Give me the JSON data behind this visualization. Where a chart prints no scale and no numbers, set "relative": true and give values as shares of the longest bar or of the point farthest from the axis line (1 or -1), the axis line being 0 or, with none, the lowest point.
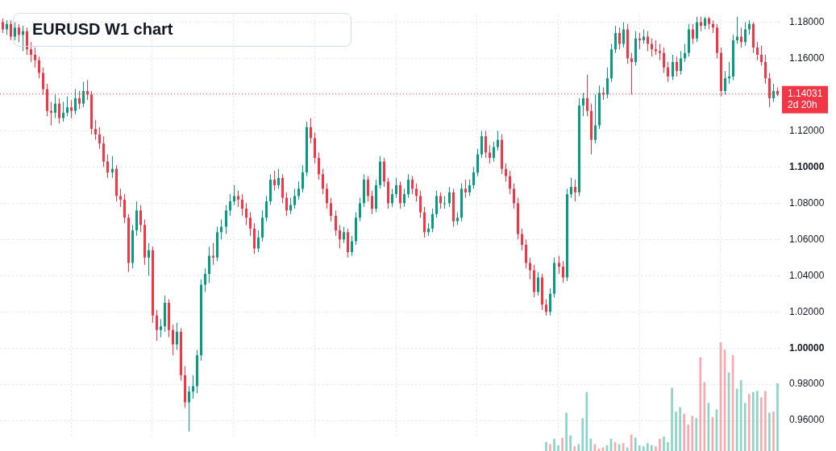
{
  "chart_data": [
    {
      "type": "candlestick",
      "title": "EURUSD W1 chart",
      "tick_labels": "y",
      "grid": true,
      "legend": false,
      "categories": [
        null,
        null,
        null,
        null,
        null,
        null,
        null,
        null,
        null,
        null,
        null,
        null,
        null,
        null,
        null,
        null,
        null,
        null,
        null,
        null,
        null,
        null,
        null,
        null,
        null,
        null,
        null,
        null,
        null,
        null,
        null,
        null,
        null,
        null,
        null,
        null,
        null,
        null,
        null,
        null,
        null,
        null,
        null,
        null,
        null,
        null,
        null,
        null,
        null,
        null,
        null,
        null,
        null,
        null,
        null,
        null,
        null,
        null,
        null,
        null,
        null,
        null,
        null,
        null,
        null,
        null,
        null,
        null,
        null,
        null,
        null,
        null,
        null,
        null,
        null,
        null,
        null,
        null,
        null,
        null,
        null,
        null,
        null,
        null,
        null,
        null,
        null,
        null,
        null,
        null,
        null,
        null,
        null,
        null,
        null,
        null,
        null,
        null,
        null,
        null,
        null,
        null,
        null,
        null,
        null,
        null,
        null,
        null,
        null,
        null,
        null,
        null,
        null,
        null,
        null,
        null,
        null,
        null,
        null,
        null,
        null,
        null,
        null,
        null,
        null,
        null,
        null,
        null,
        null,
        null,
        null,
        null,
        null,
        null,
        null,
        null,
        null,
        null,
        null,
        null,
        null,
        null,
        null,
        null,
        null,
        null,
        null,
        null,
        null,
        null,
        null,
        null,
        null,
        null,
        null,
        null,
        null,
        null,
        null,
        null,
        null,
        null,
        null,
        null,
        null,
        null,
        null,
        null,
        null,
        null,
        null,
        null,
        null,
        null,
        null,
        null,
        null,
        null,
        null,
        null,
        null,
        null,
        null,
        null,
        null,
        null,
        null,
        null,
        null,
        null,
        null,
        null
      ],
      "ylim": [
        0.9517,
        1.1837
      ],
      "yticks": [
        {
          "value": 0.96,
          "label": "0.96000"
        },
        {
          "value": 0.98,
          "label": "0.98000"
        },
        {
          "value": 1.0,
          "label": "1.00000"
        },
        {
          "value": 1.02,
          "label": "1.02000"
        },
        {
          "value": 1.04,
          "label": "1.04000"
        },
        {
          "value": 1.06,
          "label": "1.06000"
        },
        {
          "value": 1.08,
          "label": "1.08000"
        },
        {
          "value": 1.1,
          "label": "1.10000"
        },
        {
          "value": 1.12,
          "label": "1.12000"
        },
        {
          "value": 1.16,
          "label": "1.16000"
        },
        {
          "value": 1.18,
          "label": "1.18000"
        }
      ],
      "ref_lines": [
        {
          "axis": "y",
          "value": 1.14031,
          "label": "1.14031",
          "color": "#f23645",
          "line_style": "dotted"
        }
      ],
      "annotations": [
        "2d 20h"
      ],
      "ohlc": [
        [
          1.18,
          1.182,
          1.174,
          1.176
        ],
        [
          1.176,
          1.181,
          1.173,
          1.179
        ],
        [
          1.179,
          1.181,
          1.17,
          1.172
        ],
        [
          1.172,
          1.18,
          1.17,
          1.177
        ],
        [
          1.177,
          1.179,
          1.169,
          1.173
        ],
        [
          1.173,
          1.178,
          1.164,
          1.175
        ],
        [
          1.175,
          1.177,
          1.162,
          1.165
        ],
        [
          1.165,
          1.169,
          1.158,
          1.162
        ],
        [
          1.162,
          1.166,
          1.155,
          1.159
        ],
        [
          1.159,
          1.161,
          1.149,
          1.152
        ],
        [
          1.152,
          1.155,
          1.14,
          1.143
        ],
        [
          1.143,
          1.146,
          1.128,
          1.131
        ],
        [
          1.131,
          1.136,
          1.123,
          1.13
        ],
        [
          1.13,
          1.14,
          1.127,
          1.135
        ],
        [
          1.135,
          1.138,
          1.124,
          1.127
        ],
        [
          1.127,
          1.136,
          1.125,
          1.13
        ],
        [
          1.13,
          1.139,
          1.128,
          1.133
        ],
        [
          1.133,
          1.137,
          1.127,
          1.131
        ],
        [
          1.131,
          1.143,
          1.129,
          1.138
        ],
        [
          1.138,
          1.142,
          1.132,
          1.135
        ],
        [
          1.135,
          1.147,
          1.133,
          1.142
        ],
        [
          1.142,
          1.148,
          1.137,
          1.14
        ],
        [
          1.14,
          1.142,
          1.118,
          1.121
        ],
        [
          1.121,
          1.126,
          1.115,
          1.118
        ],
        [
          1.118,
          1.122,
          1.11,
          1.113
        ],
        [
          1.113,
          1.117,
          1.1,
          1.103
        ],
        [
          1.103,
          1.107,
          1.094,
          1.097
        ],
        [
          1.097,
          1.106,
          1.094,
          1.099
        ],
        [
          1.099,
          1.101,
          1.081,
          1.084
        ],
        [
          1.084,
          1.088,
          1.078,
          1.082
        ],
        [
          1.082,
          1.085,
          1.069,
          1.072
        ],
        [
          1.072,
          1.074,
          1.042,
          1.047
        ],
        [
          1.047,
          1.068,
          1.044,
          1.065
        ],
        [
          1.065,
          1.081,
          1.062,
          1.076
        ],
        [
          1.076,
          1.079,
          1.064,
          1.068
        ],
        [
          1.068,
          1.071,
          1.046,
          1.05
        ],
        [
          1.05,
          1.058,
          1.04,
          1.054
        ],
        [
          1.054,
          1.056,
          1.014,
          1.018
        ],
        [
          1.018,
          1.021,
          1.004,
          1.01
        ],
        [
          1.01,
          1.016,
          1.006,
          1.012
        ],
        [
          1.012,
          1.029,
          1.009,
          1.025
        ],
        [
          1.025,
          1.027,
          1.006,
          1.01
        ],
        [
          1.01,
          1.013,
          0.996,
          1.002
        ],
        [
          1.002,
          1.014,
          0.999,
          1.009
        ],
        [
          1.009,
          1.011,
          0.982,
          0.985
        ],
        [
          0.985,
          0.99,
          0.967,
          0.97
        ],
        [
          0.97,
          0.979,
          0.954,
          0.976
        ],
        [
          0.976,
          0.985,
          0.972,
          0.979
        ],
        [
          0.979,
          0.999,
          0.975,
          0.996
        ],
        [
          0.996,
          1.038,
          0.993,
          1.035
        ],
        [
          1.035,
          1.044,
          1.031,
          1.041
        ],
        [
          1.041,
          1.056,
          1.036,
          1.051
        ],
        [
          1.051,
          1.058,
          1.046,
          1.05
        ],
        [
          1.05,
          1.067,
          1.048,
          1.064
        ],
        [
          1.064,
          1.071,
          1.06,
          1.067
        ],
        [
          1.067,
          1.079,
          1.063,
          1.076
        ],
        [
          1.076,
          1.085,
          1.073,
          1.081
        ],
        [
          1.081,
          1.09,
          1.079,
          1.084
        ],
        [
          1.084,
          1.087,
          1.078,
          1.082
        ],
        [
          1.082,
          1.085,
          1.073,
          1.077
        ],
        [
          1.077,
          1.08,
          1.068,
          1.072
        ],
        [
          1.072,
          1.075,
          1.062,
          1.066
        ],
        [
          1.066,
          1.069,
          1.052,
          1.055
        ],
        [
          1.055,
          1.065,
          1.053,
          1.061
        ],
        [
          1.061,
          1.076,
          1.059,
          1.072
        ],
        [
          1.072,
          1.084,
          1.07,
          1.081
        ],
        [
          1.081,
          1.096,
          1.079,
          1.093
        ],
        [
          1.093,
          1.098,
          1.087,
          1.09
        ],
        [
          1.09,
          1.099,
          1.088,
          1.094
        ],
        [
          1.094,
          1.096,
          1.08,
          1.083
        ],
        [
          1.083,
          1.086,
          1.073,
          1.076
        ],
        [
          1.076,
          1.083,
          1.074,
          1.079
        ],
        [
          1.079,
          1.088,
          1.077,
          1.084
        ],
        [
          1.084,
          1.092,
          1.082,
          1.088
        ],
        [
          1.088,
          1.101,
          1.086,
          1.097
        ],
        [
          1.097,
          1.125,
          1.095,
          1.122
        ],
        [
          1.122,
          1.127,
          1.113,
          1.116
        ],
        [
          1.116,
          1.119,
          1.102,
          1.105
        ],
        [
          1.105,
          1.108,
          1.093,
          1.096
        ],
        [
          1.096,
          1.099,
          1.085,
          1.088
        ],
        [
          1.088,
          1.091,
          1.077,
          1.08
        ],
        [
          1.08,
          1.083,
          1.07,
          1.073
        ],
        [
          1.073,
          1.076,
          1.062,
          1.065
        ],
        [
          1.065,
          1.068,
          1.055,
          1.06
        ],
        [
          1.06,
          1.067,
          1.058,
          1.064
        ],
        [
          1.064,
          1.066,
          1.05,
          1.053
        ],
        [
          1.053,
          1.062,
          1.051,
          1.059
        ],
        [
          1.059,
          1.075,
          1.057,
          1.072
        ],
        [
          1.072,
          1.083,
          1.07,
          1.08
        ],
        [
          1.08,
          1.096,
          1.078,
          1.093
        ],
        [
          1.093,
          1.095,
          1.081,
          1.084
        ],
        [
          1.084,
          1.087,
          1.074,
          1.077
        ],
        [
          1.077,
          1.093,
          1.075,
          1.09
        ],
        [
          1.09,
          1.106,
          1.088,
          1.103
        ],
        [
          1.103,
          1.105,
          1.089,
          1.092
        ],
        [
          1.092,
          1.094,
          1.077,
          1.08
        ],
        [
          1.08,
          1.088,
          1.078,
          1.085
        ],
        [
          1.085,
          1.094,
          1.083,
          1.09
        ],
        [
          1.09,
          1.092,
          1.077,
          1.08
        ],
        [
          1.08,
          1.088,
          1.078,
          1.085
        ],
        [
          1.085,
          1.096,
          1.083,
          1.093
        ],
        [
          1.093,
          1.095,
          1.085,
          1.088
        ],
        [
          1.088,
          1.091,
          1.081,
          1.084
        ],
        [
          1.084,
          1.087,
          1.072,
          1.075
        ],
        [
          1.075,
          1.078,
          1.061,
          1.064
        ],
        [
          1.064,
          1.069,
          1.062,
          1.066
        ],
        [
          1.066,
          1.077,
          1.064,
          1.074
        ],
        [
          1.074,
          1.087,
          1.072,
          1.084
        ],
        [
          1.084,
          1.086,
          1.077,
          1.08
        ],
        [
          1.08,
          1.084,
          1.077,
          1.08
        ],
        [
          1.08,
          1.089,
          1.078,
          1.086
        ],
        [
          1.086,
          1.088,
          1.067,
          1.07
        ],
        [
          1.07,
          1.075,
          1.068,
          1.072
        ],
        [
          1.072,
          1.091,
          1.07,
          1.088
        ],
        [
          1.088,
          1.093,
          1.083,
          1.086
        ],
        [
          1.086,
          1.093,
          1.084,
          1.09
        ],
        [
          1.09,
          1.1,
          1.088,
          1.097
        ],
        [
          1.097,
          1.11,
          1.095,
          1.107
        ],
        [
          1.107,
          1.12,
          1.105,
          1.117
        ],
        [
          1.117,
          1.12,
          1.105,
          1.108
        ],
        [
          1.108,
          1.112,
          1.102,
          1.105
        ],
        [
          1.105,
          1.114,
          1.103,
          1.111
        ],
        [
          1.111,
          1.12,
          1.109,
          1.115
        ],
        [
          1.115,
          1.118,
          1.096,
          1.099
        ],
        [
          1.099,
          1.102,
          1.092,
          1.095
        ],
        [
          1.095,
          1.098,
          1.085,
          1.088
        ],
        [
          1.088,
          1.091,
          1.077,
          1.08
        ],
        [
          1.08,
          1.083,
          1.06,
          1.063
        ],
        [
          1.063,
          1.066,
          1.054,
          1.057
        ],
        [
          1.057,
          1.06,
          1.044,
          1.047
        ],
        [
          1.047,
          1.05,
          1.038,
          1.043
        ],
        [
          1.043,
          1.046,
          1.028,
          1.031
        ],
        [
          1.031,
          1.042,
          1.029,
          1.039
        ],
        [
          1.039,
          1.041,
          1.021,
          1.024
        ],
        [
          1.024,
          1.027,
          1.018,
          1.02
        ],
        [
          1.02,
          1.033,
          1.018,
          1.03
        ],
        [
          1.03,
          1.05,
          1.028,
          1.047
        ],
        [
          1.047,
          1.051,
          1.041,
          1.045
        ],
        [
          1.045,
          1.048,
          1.036,
          1.039
        ],
        [
          1.039,
          1.088,
          1.037,
          1.085
        ],
        [
          1.085,
          1.094,
          1.083,
          1.089
        ],
        [
          1.089,
          1.093,
          1.081,
          1.086
        ],
        [
          1.086,
          1.138,
          1.084,
          1.134
        ],
        [
          1.134,
          1.141,
          1.128,
          1.138
        ],
        [
          1.138,
          1.151,
          1.128,
          1.131
        ],
        [
          1.131,
          1.135,
          1.107,
          1.115
        ],
        [
          1.115,
          1.14,
          1.113,
          1.123
        ],
        [
          1.123,
          1.145,
          1.121,
          1.141
        ],
        [
          1.141,
          1.144,
          1.137,
          1.14
        ],
        [
          1.14,
          1.155,
          1.138,
          1.149
        ],
        [
          1.149,
          1.168,
          1.147,
          1.165
        ],
        [
          1.165,
          1.178,
          1.163,
          1.174
        ],
        [
          1.174,
          1.177,
          1.165,
          1.168
        ],
        [
          1.168,
          1.18,
          1.166,
          1.176
        ],
        [
          1.176,
          1.179,
          1.157,
          1.16
        ],
        [
          1.16,
          1.163,
          1.14,
          1.158
        ],
        [
          1.158,
          1.175,
          1.156,
          1.171
        ],
        [
          1.171,
          1.174,
          1.165,
          1.17
        ],
        [
          1.17,
          1.176,
          1.168,
          1.172
        ],
        [
          1.172,
          1.175,
          1.164,
          1.168
        ],
        [
          1.168,
          1.171,
          1.161,
          1.165
        ],
        [
          1.165,
          1.17,
          1.162,
          1.164
        ],
        [
          1.164,
          1.168,
          1.159,
          1.163
        ],
        [
          1.163,
          1.166,
          1.152,
          1.155
        ],
        [
          1.155,
          1.158,
          1.147,
          1.15
        ],
        [
          1.15,
          1.162,
          1.148,
          1.158
        ],
        [
          1.158,
          1.161,
          1.15,
          1.153
        ],
        [
          1.153,
          1.164,
          1.151,
          1.16
        ],
        [
          1.16,
          1.168,
          1.158,
          1.163
        ],
        [
          1.163,
          1.179,
          1.161,
          1.176
        ],
        [
          1.176,
          1.179,
          1.168,
          1.171
        ],
        [
          1.171,
          1.183,
          1.169,
          1.18
        ],
        [
          1.18,
          1.183,
          1.175,
          1.178
        ],
        [
          1.178,
          1.183,
          1.176,
          1.182
        ],
        [
          1.182,
          1.183,
          1.176,
          1.179
        ],
        [
          1.179,
          1.181,
          1.174,
          1.177
        ],
        [
          1.177,
          1.179,
          1.16,
          1.163
        ],
        [
          1.163,
          1.166,
          1.139,
          1.142
        ],
        [
          1.142,
          1.153,
          1.14,
          1.149
        ],
        [
          1.149,
          1.158,
          1.146,
          1.15
        ],
        [
          1.15,
          1.173,
          1.148,
          1.17
        ],
        [
          1.17,
          1.183,
          1.168,
          1.172
        ],
        [
          1.172,
          1.177,
          1.166,
          1.169
        ],
        [
          1.169,
          1.18,
          1.167,
          1.176
        ],
        [
          1.176,
          1.181,
          1.173,
          1.179
        ],
        [
          1.179,
          1.18,
          1.163,
          1.166
        ],
        [
          1.166,
          1.169,
          1.159,
          1.162
        ],
        [
          1.162,
          1.167,
          1.156,
          1.158
        ],
        [
          1.158,
          1.162,
          1.146,
          1.149
        ],
        [
          1.149,
          1.152,
          1.133,
          1.138
        ],
        [
          1.138,
          1.146,
          1.136,
          1.142
        ],
        [
          1.142,
          1.144,
          1.139,
          1.14
        ]
      ],
      "colors": [
        "#f23645",
        "#089981",
        "#f23645",
        "#089981",
        "#f23645",
        "#089981",
        "#f23645",
        "#f23645",
        "#f23645",
        "#f23645",
        "#f23645",
        "#f23645",
        "#f23645",
        "#089981",
        "#f23645",
        "#089981",
        "#089981",
        "#f23645",
        "#089981",
        "#f23645",
        "#089981",
        "#f23645",
        "#f23645",
        "#f23645",
        "#f23645",
        "#f23645",
        "#f23645",
        "#089981",
        "#f23645",
        "#f23645",
        "#f23645",
        "#f23645",
        "#089981",
        "#089981",
        "#f23645",
        "#f23645",
        "#089981",
        "#f23645",
        "#f23645",
        "#089981",
        "#089981",
        "#f23645",
        "#f23645",
        "#089981",
        "#f23645",
        "#f23645",
        "#089981",
        "#089981",
        "#089981",
        "#089981",
        "#089981",
        "#089981",
        "#f23645",
        "#089981",
        "#089981",
        "#089981",
        "#089981",
        "#089981",
        "#f23645",
        "#f23645",
        "#f23645",
        "#f23645",
        "#f23645",
        "#089981",
        "#089981",
        "#089981",
        "#089981",
        "#f23645",
        "#089981",
        "#f23645",
        "#f23645",
        "#089981",
        "#089981",
        "#089981",
        "#089981",
        "#089981",
        "#f23645",
        "#f23645",
        "#f23645",
        "#f23645",
        "#f23645",
        "#f23645",
        "#f23645",
        "#f23645",
        "#089981",
        "#f23645",
        "#089981",
        "#089981",
        "#089981",
        "#089981",
        "#f23645",
        "#f23645",
        "#089981",
        "#089981",
        "#f23645",
        "#f23645",
        "#089981",
        "#089981",
        "#f23645",
        "#089981",
        "#089981",
        "#f23645",
        "#f23645",
        "#f23645",
        "#f23645",
        "#089981",
        "#089981",
        "#089981",
        "#f23645",
        "#089981",
        "#089981",
        "#f23645",
        "#089981",
        "#089981",
        "#f23645",
        "#089981",
        "#089981",
        "#089981",
        "#089981",
        "#f23645",
        "#f23645",
        "#089981",
        "#089981",
        "#f23645",
        "#f23645",
        "#f23645",
        "#f23645",
        "#f23645",
        "#f23645",
        "#f23645",
        "#f23645",
        "#f23645",
        "#089981",
        "#f23645",
        "#f23645",
        "#089981",
        "#089981",
        "#f23645",
        "#f23645",
        "#089981",
        "#089981",
        "#f23645",
        "#089981",
        "#089981",
        "#f23645",
        "#f23645",
        "#089981",
        "#089981",
        "#f23645",
        "#089981",
        "#089981",
        "#089981",
        "#f23645",
        "#089981",
        "#f23645",
        "#f23645",
        "#089981",
        "#f23645",
        "#089981",
        "#f23645",
        "#f23645",
        "#f23645",
        "#f23645",
        "#f23645",
        "#f23645",
        "#089981",
        "#f23645",
        "#089981",
        "#089981",
        "#089981",
        "#f23645",
        "#089981",
        "#f23645",
        "#089981",
        "#f23645",
        "#f23645",
        "#f23645",
        "#f23645",
        "#089981",
        "#089981",
        "#089981",
        "#089981",
        "#f23645",
        "#089981",
        "#089981",
        "#f23645",
        "#f23645",
        "#f23645",
        "#f23645",
        "#f23645",
        "#089981",
        "#f23645"
      ]
    },
    {
      "type": "bar",
      "relative": true,
      "tick_labels": false,
      "legend": false,
      "categories": [
        null,
        null,
        null,
        null,
        null,
        null,
        null,
        null,
        null,
        null,
        null,
        null,
        null,
        null,
        null,
        null,
        null,
        null,
        null,
        null,
        null,
        null,
        null,
        null,
        null,
        null,
        null,
        null,
        null,
        null,
        null,
        null,
        null,
        null,
        null,
        null,
        null,
        null,
        null,
        null,
        null,
        null,
        null,
        null,
        null,
        null,
        null,
        null,
        null,
        null,
        null,
        null,
        null,
        null,
        null,
        null,
        null,
        null,
        null,
        null,
        null,
        null,
        null,
        null,
        null,
        null,
        null,
        null,
        null,
        null,
        null,
        null,
        null,
        null,
        null,
        null,
        null,
        null,
        null,
        null,
        null,
        null,
        null,
        null,
        null,
        null,
        null,
        null,
        null,
        null,
        null,
        null,
        null,
        null,
        null,
        null,
        null,
        null,
        null,
        null,
        null,
        null,
        null,
        null,
        null,
        null,
        null,
        null,
        null,
        null,
        null,
        null,
        null,
        null,
        null,
        null,
        null,
        null,
        null,
        null,
        null,
        null,
        null,
        null,
        null,
        null,
        null,
        null,
        null,
        null,
        null,
        null,
        null,
        null,
        null,
        null,
        null,
        null,
        null,
        null,
        null,
        null,
        null,
        null,
        null,
        null,
        null,
        null,
        null,
        null,
        null,
        null,
        null,
        null,
        null,
        null,
        null,
        null,
        null,
        null,
        null,
        null,
        null,
        null,
        null,
        null,
        null,
        null,
        null,
        null,
        null,
        null,
        null,
        null,
        null,
        null,
        null,
        null,
        null,
        null,
        null,
        null,
        null,
        null,
        null,
        null,
        null,
        null,
        null,
        null,
        null,
        null
      ],
      "values": [
        null,
        null,
        null,
        null,
        null,
        null,
        null,
        null,
        null,
        null,
        null,
        null,
        null,
        null,
        null,
        null,
        null,
        null,
        null,
        null,
        null,
        null,
        null,
        null,
        null,
        null,
        null,
        null,
        null,
        null,
        null,
        null,
        null,
        null,
        null,
        null,
        null,
        null,
        null,
        null,
        null,
        null,
        null,
        null,
        null,
        null,
        null,
        null,
        null,
        null,
        null,
        null,
        null,
        null,
        null,
        null,
        null,
        null,
        null,
        null,
        null,
        null,
        null,
        null,
        null,
        null,
        null,
        null,
        null,
        null,
        null,
        null,
        null,
        null,
        null,
        null,
        null,
        null,
        null,
        null,
        null,
        null,
        null,
        null,
        null,
        null,
        null,
        null,
        null,
        null,
        null,
        null,
        null,
        null,
        null,
        null,
        null,
        null,
        null,
        null,
        null,
        null,
        null,
        null,
        null,
        null,
        null,
        null,
        null,
        null,
        null,
        null,
        null,
        null,
        null,
        null,
        null,
        null,
        null,
        null,
        null,
        null,
        null,
        null,
        null,
        null,
        null,
        null,
        null,
        null,
        null,
        null,
        null,
        null,
        0.08,
        0.06,
        0.11,
        0.05,
        0.12,
        0.35,
        0.14,
        0.04,
        0.06,
        0.3,
        0.54,
        0.11,
        0.06,
        0.02,
        0.03,
        0.05,
        0.11,
        0.08,
        0.06,
        0.07,
        0.03,
        0.15,
        0.12,
        0.05,
        0.04,
        0.07,
        0.05,
        0.04,
        0.11,
        0.13,
        0.08,
        0.58,
        0.36,
        0.4,
        0.34,
        0.24,
        0.32,
        0.3,
        0.86,
        0.63,
        0.44,
        0.31,
        0.38,
        1.0,
        0.93,
        0.72,
        0.88,
        0.57,
        0.65,
        0.44,
        0.52,
        0.54,
        0.55,
        0.49,
        0.55,
        0.35,
        0.36,
        0.62
      ],
      "colors": [
        null,
        null,
        null,
        null,
        null,
        null,
        null,
        null,
        null,
        null,
        null,
        null,
        null,
        null,
        null,
        null,
        null,
        null,
        null,
        null,
        null,
        null,
        null,
        null,
        null,
        null,
        null,
        null,
        null,
        null,
        null,
        null,
        null,
        null,
        null,
        null,
        null,
        null,
        null,
        null,
        null,
        null,
        null,
        null,
        null,
        null,
        null,
        null,
        null,
        null,
        null,
        null,
        null,
        null,
        null,
        null,
        null,
        null,
        null,
        null,
        null,
        null,
        null,
        null,
        null,
        null,
        null,
        null,
        null,
        null,
        null,
        null,
        null,
        null,
        null,
        null,
        null,
        null,
        null,
        null,
        null,
        null,
        null,
        null,
        null,
        null,
        null,
        null,
        null,
        null,
        null,
        null,
        null,
        null,
        null,
        null,
        null,
        null,
        null,
        null,
        null,
        null,
        null,
        null,
        null,
        null,
        null,
        null,
        null,
        null,
        null,
        null,
        null,
        null,
        null,
        null,
        null,
        null,
        null,
        null,
        null,
        null,
        null,
        null,
        null,
        null,
        null,
        null,
        null,
        null,
        null,
        null,
        null,
        null,
        "#8cd3c5",
        "#f7a9ad",
        "#8cd3c5",
        "#8cd3c5",
        "#f7a9ad",
        "#8cd3c5",
        "#8cd3c5",
        "#f7a9ad",
        "#8cd3c5",
        "#8cd3c5",
        "#8cd3c5",
        "#8cd3c5",
        "#f7a9ad",
        "#f7a9ad",
        "#f7a9ad",
        "#8cd3c5",
        "#8cd3c5",
        "#f7a9ad",
        "#8cd3c5",
        "#f7a9ad",
        "#8cd3c5",
        "#f7a9ad",
        "#8cd3c5",
        "#8cd3c5",
        "#8cd3c5",
        "#8cd3c5",
        "#8cd3c5",
        "#f7a9ad",
        "#f7a9ad",
        "#8cd3c5",
        "#8cd3c5",
        "#8cd3c5",
        "#8cd3c5",
        "#8cd3c5",
        "#f7a9ad",
        "#f7a9ad",
        "#f7a9ad",
        "#8cd3c5",
        "#f7a9ad",
        "#f7a9ad",
        "#8cd3c5",
        "#f7a9ad",
        "#8cd3c5",
        "#f7a9ad",
        "#f7a9ad",
        "#8cd3c5",
        "#f7a9ad",
        "#8cd3c5",
        "#8cd3c5",
        "#8cd3c5",
        "#f7a9ad",
        "#8cd3c5",
        "#8cd3c5",
        "#f7a9ad",
        "#f7a9ad",
        "#8cd3c5",
        "#f7a9ad",
        "#8cd3c5"
      ]
    }
  ]
}
